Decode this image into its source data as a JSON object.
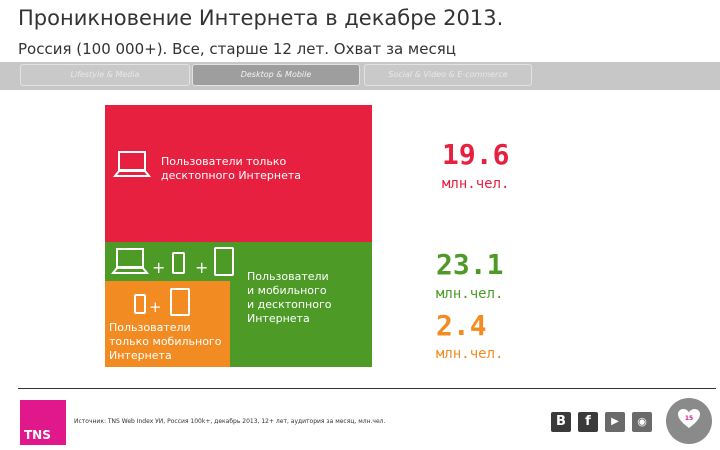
{
  "header": {
    "title": "Проникновение Интернета в декабре 2013.",
    "subtitle": "Россия (100 000+). Все, старше 12 лет. Охват за месяц"
  },
  "tabs": [
    {
      "label": "Lifestyle & Media",
      "active": false
    },
    {
      "label": "Desktop & Mobile",
      "active": true
    },
    {
      "label": "Social & Video & E-commerce",
      "active": false
    }
  ],
  "segments": {
    "desktop_only": {
      "label_line1": "Пользователи только",
      "label_line2": "десктопного Интернета",
      "color": "#e7203f"
    },
    "both": {
      "label_line1": "Пользователи",
      "label_line2": "и мобильного",
      "label_line3": "и десктопного",
      "label_line4": "Интернета",
      "color": "#4d9b26"
    },
    "mobile_only": {
      "label_line1": "Пользователи",
      "label_line2": "только мобильного",
      "label_line3": "Интернета",
      "color": "#f28c22"
    }
  },
  "figures": [
    {
      "value": "19.6",
      "unit": "млн.чел.",
      "color": "#e7203f"
    },
    {
      "value": "23.1",
      "unit": "млн.чел.",
      "color": "#4d9b26"
    },
    {
      "value": "2.4",
      "unit": "млн.чел.",
      "color": "#f28c22"
    }
  ],
  "footer": {
    "logo_text": "TNS",
    "source": "Источник: TNS Web Index УИ, Россия 100k+, декабрь 2013, 12+ лет, аудитория за месяц, млн.чел.",
    "social": [
      {
        "icon": "vk-icon",
        "glyph": "B",
        "color": "#3a3a3a"
      },
      {
        "icon": "facebook-icon",
        "glyph": "f",
        "color": "#3a3a3a"
      },
      {
        "icon": "youtube-icon",
        "glyph": "▶",
        "color": "#6a6a6a"
      },
      {
        "icon": "rss-icon",
        "glyph": "◉",
        "color": "#6a6a6a"
      }
    ],
    "page_number": "15",
    "heart_color": "#e0188b"
  }
}
